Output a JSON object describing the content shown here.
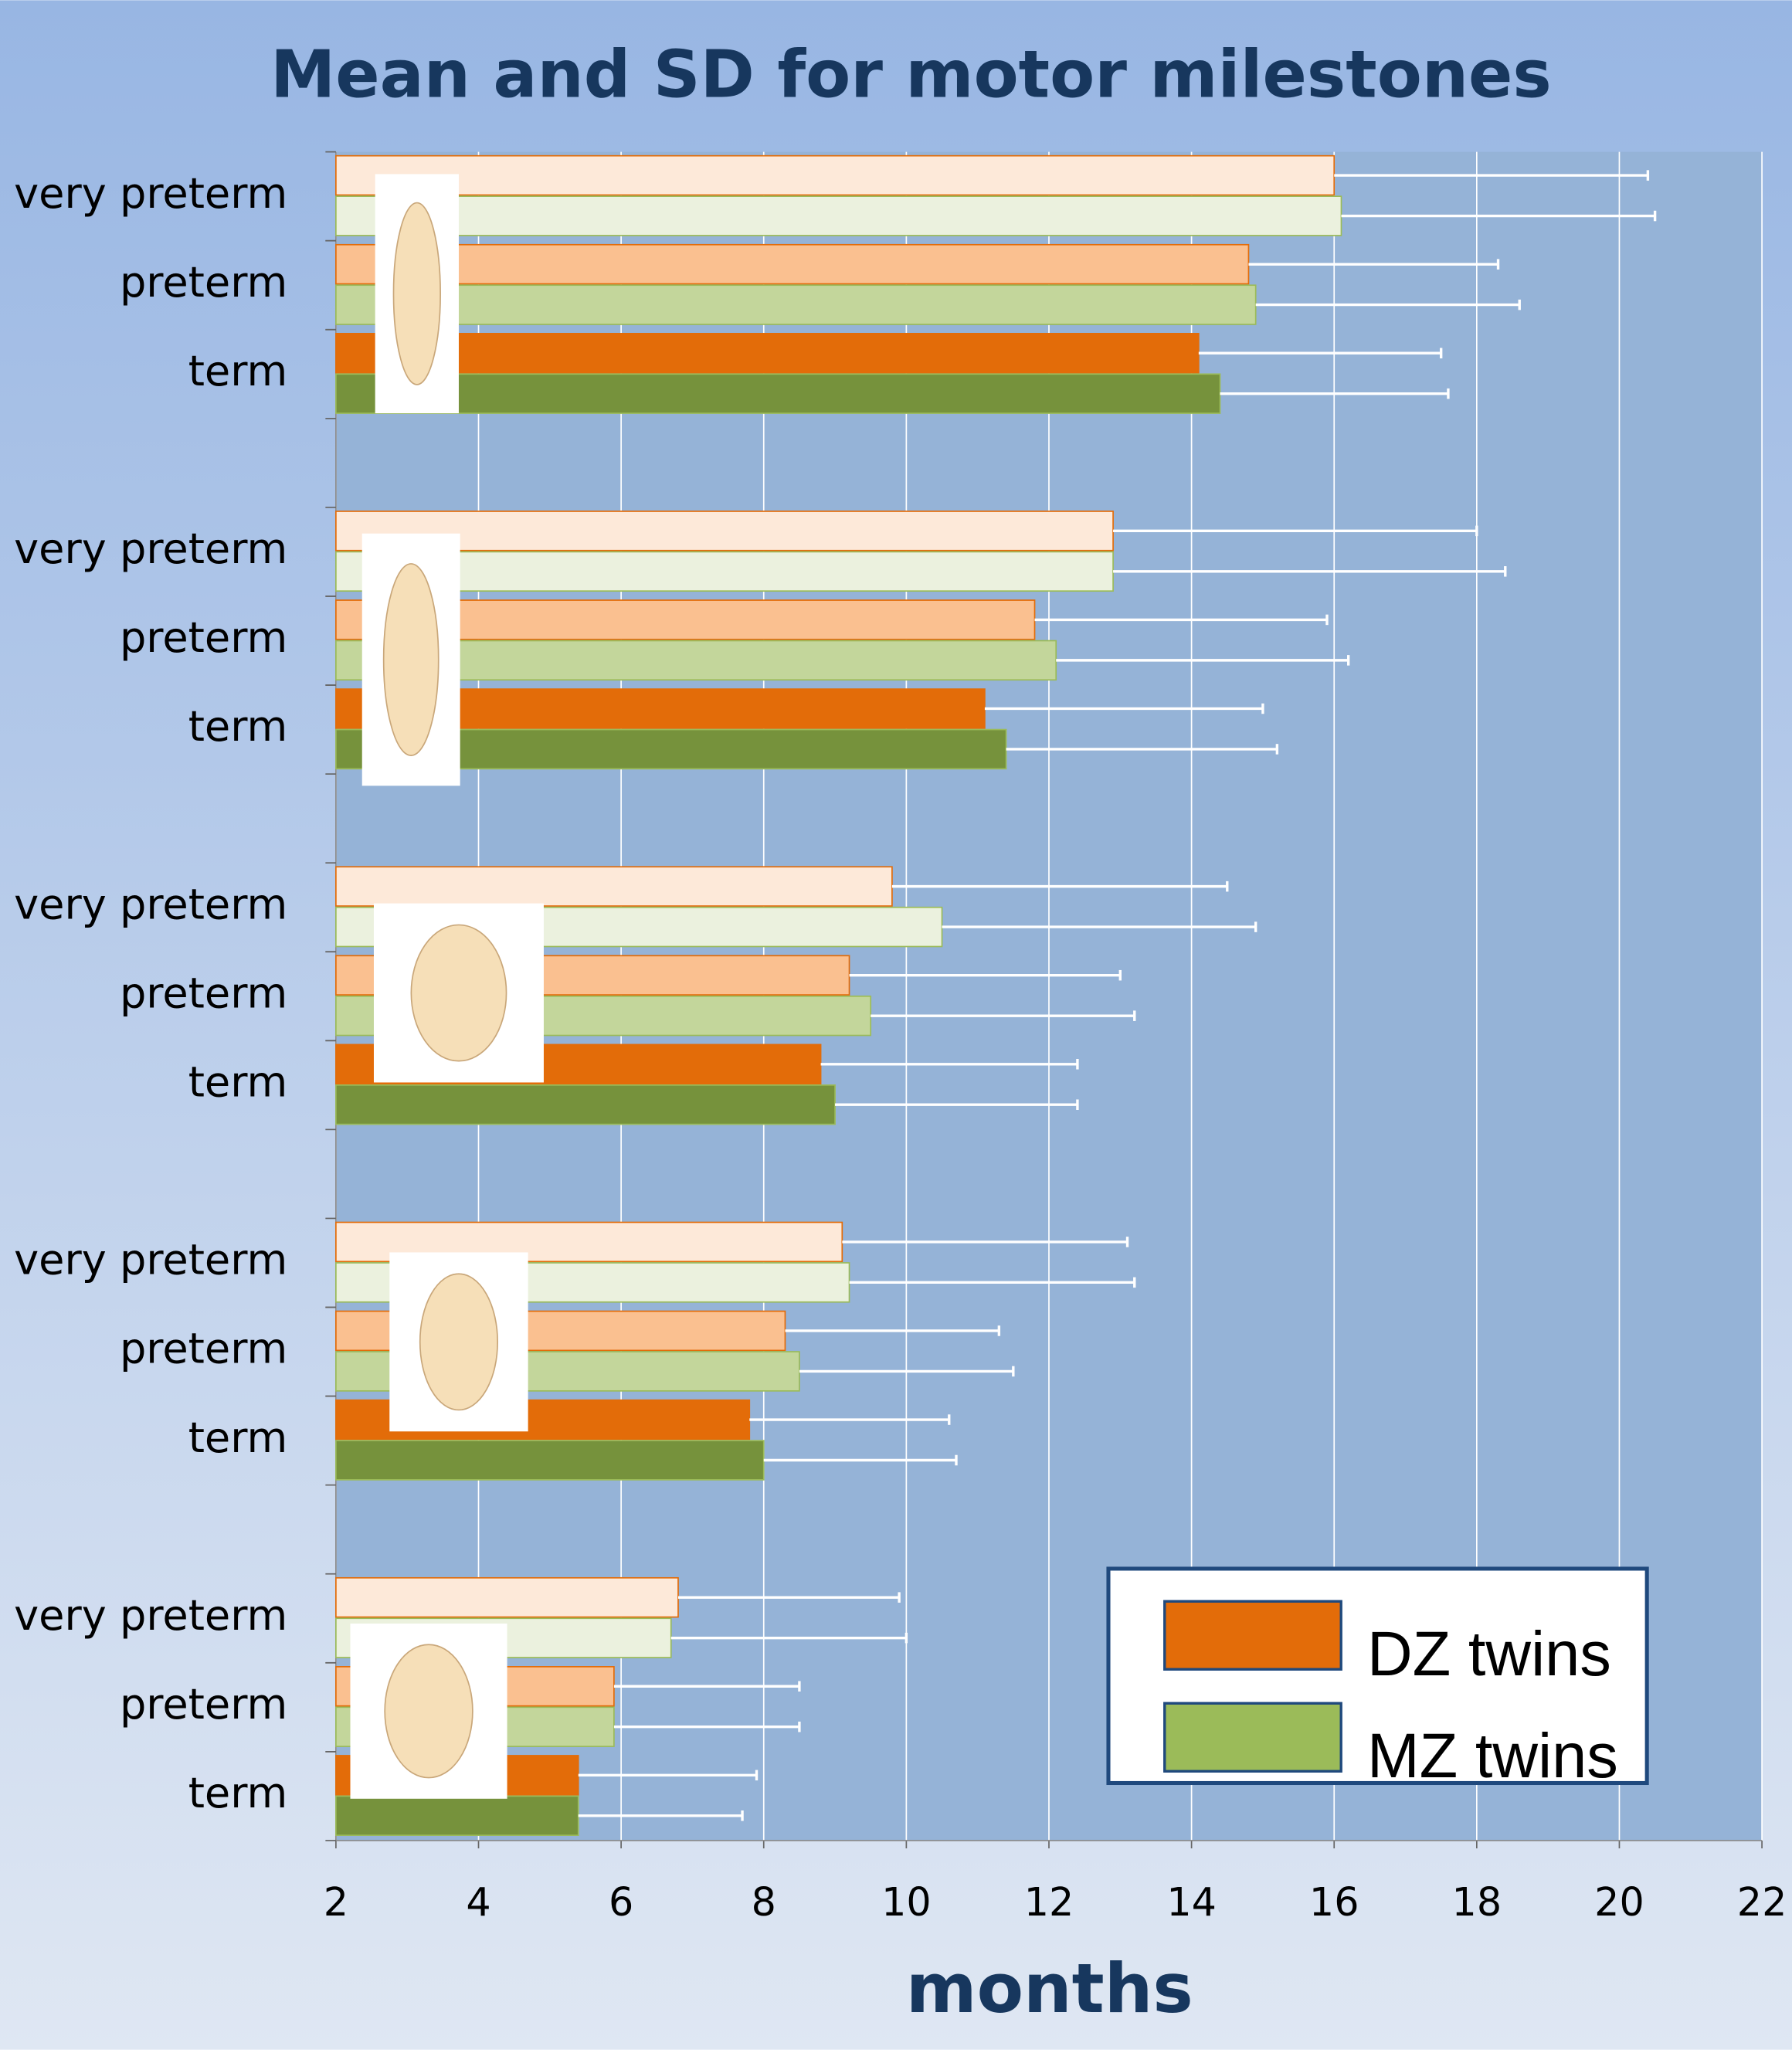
{
  "chart_data": {
    "type": "bar",
    "orientation": "horizontal",
    "title": "Mean and SD for motor milestones",
    "x_label": "months",
    "categories": [
      "very preterm",
      "preterm",
      "term",
      "very preterm",
      "preterm",
      "term",
      "very preterm",
      "preterm",
      "term",
      "very preterm",
      "preterm",
      "term",
      "very preterm",
      "preterm",
      "term"
    ],
    "series": [
      {
        "name": "DZ twins",
        "color": "#e36c09",
        "colors": [
          "#fde9d9",
          "#fac090",
          "#e36c09",
          "#fde9d9",
          "#fac090",
          "#e36c09",
          "#fde9d9",
          "#fac090",
          "#e36c09",
          "#fde9d9",
          "#fac090",
          "#e36c09",
          "#fde9d9",
          "#fac090",
          "#e36c09"
        ],
        "values": [
          16.0,
          14.8,
          14.1,
          12.9,
          11.8,
          11.1,
          9.8,
          9.2,
          8.8,
          9.1,
          8.3,
          7.8,
          6.8,
          5.9,
          5.4
        ],
        "errors": [
          4.4,
          3.5,
          3.4,
          5.1,
          4.1,
          3.9,
          4.7,
          3.8,
          3.6,
          4.0,
          3.0,
          2.8,
          3.1,
          2.6,
          2.5
        ]
      },
      {
        "name": "MZ twins",
        "color": "#9bbb59",
        "colors": [
          "#ebf1de",
          "#c3d69b",
          "#76923c",
          "#ebf1de",
          "#c3d69b",
          "#76923c",
          "#ebf1de",
          "#c3d69b",
          "#76923c",
          "#ebf1de",
          "#c3d69b",
          "#76923c",
          "#ebf1de",
          "#c3d69b",
          "#76923c"
        ],
        "values": [
          16.1,
          14.9,
          14.4,
          12.9,
          12.1,
          11.4,
          10.5,
          9.5,
          9.0,
          9.2,
          8.5,
          8.0,
          6.7,
          5.9,
          5.4
        ],
        "errors": [
          4.4,
          3.7,
          3.2,
          5.5,
          4.1,
          3.8,
          4.4,
          3.7,
          3.4,
          4.0,
          3.0,
          2.7,
          3.3,
          2.6,
          2.3
        ]
      }
    ],
    "xlim": [
      2,
      22
    ],
    "xticks": [
      2,
      4,
      6,
      8,
      10,
      12,
      14,
      16,
      18,
      20,
      22
    ],
    "grid": true,
    "legend": "lower right"
  }
}
